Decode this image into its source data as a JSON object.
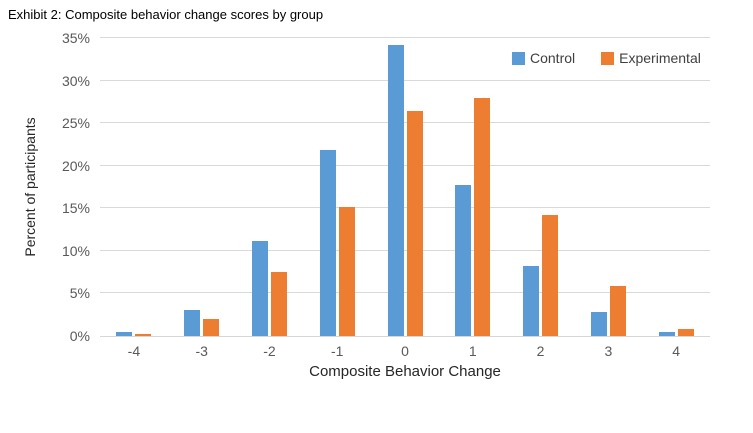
{
  "chart_data": {
    "type": "bar",
    "title": "Exhibit 2: Composite behavior change scores by group",
    "categories": [
      "-4",
      "-3",
      "-2",
      "-1",
      "0",
      "1",
      "2",
      "3",
      "4"
    ],
    "series": [
      {
        "name": "Control",
        "color": "#5B9BD5",
        "values": [
          0.5,
          3.0,
          11.2,
          21.8,
          34.2,
          17.7,
          8.2,
          2.8,
          0.5
        ]
      },
      {
        "name": "Experimental",
        "color": "#ED7D31",
        "values": [
          0.2,
          2.0,
          7.5,
          15.2,
          26.4,
          28.0,
          14.2,
          5.9,
          0.8
        ]
      }
    ],
    "xlabel": "Composite Behavior Change",
    "ylabel": "Percent of participants",
    "ylim": [
      0,
      35
    ],
    "ytick_step": 5,
    "ytick_labels": [
      "0%",
      "5%",
      "10%",
      "15%",
      "20%",
      "25%",
      "30%",
      "35%"
    ],
    "grid": true,
    "legend_position": "top-right",
    "colors": {
      "gridline": "#D9D9D9",
      "axis_line": "#D6D6D6",
      "tick_label": "#595959",
      "axis_title": "#262626",
      "title": "#000000"
    }
  }
}
